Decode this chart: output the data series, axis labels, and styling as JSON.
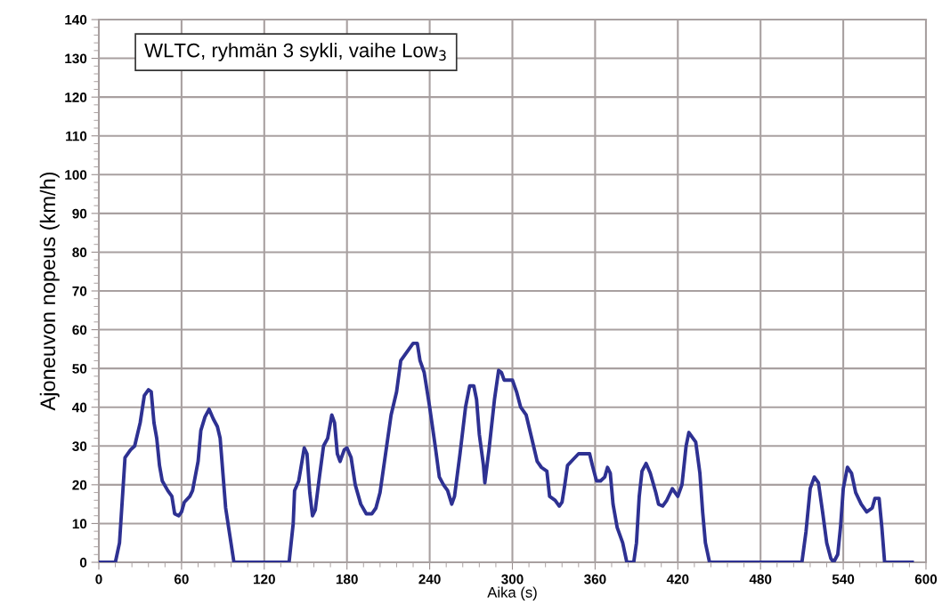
{
  "chart_data": {
    "type": "line",
    "xlabel": "Aika (s)",
    "ylabel": "Ajoneuvon nopeus (km/h)",
    "annotations": [
      "WLTC, ryhmän 3 sykli, vaihe Low$_{3}$"
    ],
    "xlim": [
      0,
      600
    ],
    "xticks": [
      0,
      60,
      120,
      180,
      240,
      300,
      360,
      420,
      480,
      540,
      600
    ],
    "ylim": [
      0,
      140
    ],
    "yticks": [
      0,
      10,
      20,
      30,
      40,
      50,
      60,
      70,
      80,
      90,
      100,
      110,
      120,
      130,
      140
    ],
    "grid": true,
    "marker": "none",
    "line_style": "solid",
    "series": [
      {
        "color": "#2e3192",
        "x": [
          0,
          12,
          15,
          19,
          23,
          26,
          30,
          33,
          36,
          38,
          40,
          42,
          44,
          46,
          50,
          53,
          55,
          58,
          60,
          62,
          66,
          68,
          72,
          74,
          77,
          80,
          83,
          86,
          88,
          90,
          92,
          95,
          98,
          138,
          141,
          142,
          145,
          149,
          151,
          153,
          155,
          157,
          160,
          163,
          166,
          169,
          171,
          173,
          175,
          178,
          180,
          183,
          186,
          190,
          194,
          198,
          201,
          204,
          208,
          212,
          216,
          219,
          222,
          225,
          228,
          231,
          233,
          236,
          240,
          244,
          247,
          250,
          253,
          256,
          258,
          262,
          266,
          269,
          272,
          274,
          276,
          279,
          280,
          283,
          287,
          290,
          292,
          294,
          298,
          300,
          303,
          306,
          310,
          314,
          318,
          321,
          325,
          327,
          331,
          334,
          336,
          338,
          340,
          344,
          348,
          352,
          356,
          358,
          361,
          364,
          367,
          369,
          371,
          373,
          376,
          380,
          383,
          388,
          390,
          392,
          394,
          397,
          400,
          404,
          406,
          409,
          412,
          416,
          418,
          420,
          423,
          426,
          428,
          431,
          433,
          436,
          438,
          440,
          443,
          510,
          513,
          516,
          519,
          522,
          525,
          528,
          531,
          533,
          536,
          538,
          540,
          543,
          546,
          549,
          553,
          557,
          561,
          563,
          566,
          568,
          570,
          590
        ],
        "values": [
          0,
          0,
          5,
          27,
          29,
          30,
          36,
          43,
          44.5,
          44,
          36,
          32,
          25,
          21,
          18.5,
          17,
          12.5,
          12,
          13,
          15.5,
          17,
          18.5,
          26,
          34,
          37.5,
          39.5,
          37,
          35,
          32,
          23,
          14,
          7,
          0,
          0,
          10,
          18.5,
          21,
          29.5,
          28,
          18,
          12,
          13.5,
          22,
          30,
          32,
          38,
          36,
          28,
          26,
          29,
          29.5,
          27,
          20,
          15,
          12.5,
          12.5,
          14,
          18,
          28,
          38,
          44,
          52,
          53.5,
          55,
          56.5,
          56.5,
          52,
          49,
          40,
          30,
          22,
          20,
          18.5,
          15,
          17,
          28,
          40,
          45.5,
          45.5,
          42,
          33,
          25,
          20.5,
          29,
          42,
          49.5,
          49,
          47,
          47,
          47,
          44,
          40,
          38,
          32,
          26,
          24.5,
          23.5,
          17,
          16,
          14.5,
          15.5,
          20,
          25,
          26.5,
          28,
          28,
          28,
          25,
          21,
          21,
          22,
          24.5,
          23,
          15,
          9,
          5,
          0,
          0,
          5,
          17,
          23.5,
          25.5,
          23,
          18,
          15,
          14.5,
          16,
          19,
          18,
          17,
          20,
          30,
          33.5,
          32,
          31,
          23,
          13,
          5,
          0,
          0,
          8,
          19,
          22,
          20.5,
          13,
          5,
          1,
          0,
          2,
          9,
          19,
          24.5,
          23,
          18,
          15,
          13,
          14,
          16.5,
          16.5,
          9,
          0,
          0
        ]
      }
    ]
  }
}
